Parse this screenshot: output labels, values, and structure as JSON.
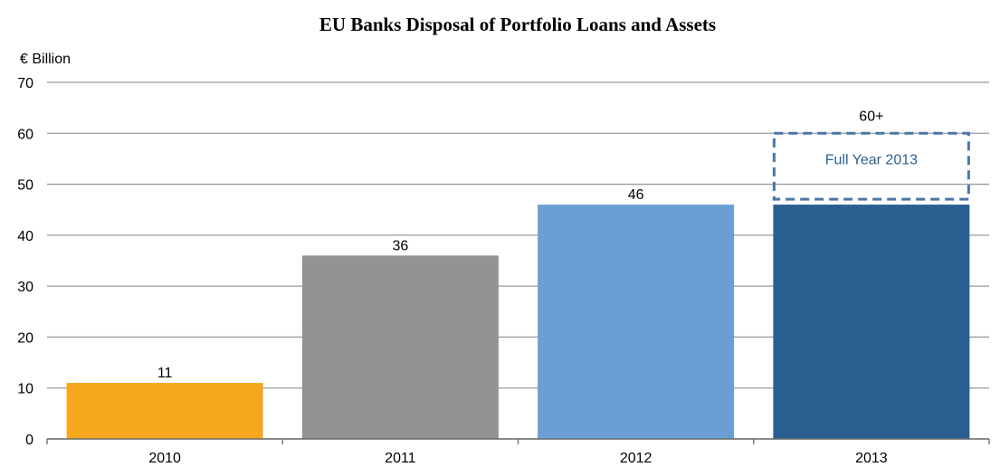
{
  "chart_data": {
    "type": "bar",
    "title": "EU Banks Disposal of Portfolio Loans and Assets",
    "ylabel": "€ Billion",
    "xlabel": "",
    "categories": [
      "2010",
      "2011",
      "2012",
      "2013"
    ],
    "values": [
      11,
      36,
      46,
      46
    ],
    "value_labels": [
      "11",
      "36",
      "46",
      ""
    ],
    "bar_colors": [
      "#f5a71d",
      "#939393",
      "#6a9fd4",
      "#2b5f91"
    ],
    "ylim": [
      0,
      70
    ],
    "yticks": [
      0,
      10,
      20,
      30,
      40,
      50,
      60,
      70
    ],
    "grid": true,
    "legend": "none",
    "projection": {
      "category": "2013",
      "from": 46,
      "to": 60,
      "value_label": "60+",
      "text": "Full Year 2013",
      "style": "dashed outline",
      "color": "#4a76a6"
    }
  }
}
